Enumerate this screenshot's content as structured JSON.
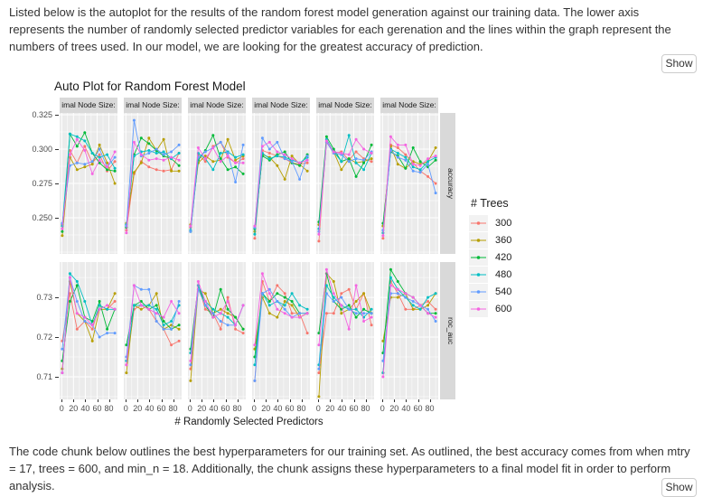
{
  "page": {
    "intro_paragraph": "Listed below is the autoplot for the results of the random forest model generation against our training data. The lower axis represents the number of randomly selected predictor variables for each gerenation and the lines within the graph represent the numbers of trees used. In our model, we are looking for the greatest accuracy of prediction.",
    "outro_paragraph": "The code chunk below outlines the best hyperparameters for our training set. As outlined, the best accuracy comes from when mtry = 17, trees = 600, and min_n = 18. Additionally, the chunk assigns these hyperparameters to a final model fit in order to perform analysis.",
    "show_button_label": "Show"
  },
  "theme": {
    "panel_bg": "#EBEBEB",
    "grid": "#FFFFFF",
    "strip_bg": "#D9D9D9",
    "axis_text": "#4D4D4D",
    "tick_mark": "#333333"
  },
  "chart_data": {
    "type": "line",
    "title": "Auto Plot for Random Forest Model",
    "xlabel": "# Randomly Selected Predictors",
    "legend": {
      "title": "# Trees",
      "position": "right"
    },
    "series_order": [
      "300",
      "360",
      "420",
      "480",
      "540",
      "600"
    ],
    "series_colors": {
      "300": "#F8766D",
      "360": "#B79F00",
      "420": "#00BA38",
      "480": "#00BFC4",
      "540": "#619CFF",
      "600": "#F564E2"
    },
    "x": [
      1,
      14,
      26,
      39,
      52,
      64,
      77,
      90
    ],
    "x_ticks": [
      0,
      20,
      40,
      60,
      80
    ],
    "x_minor_ticks": [
      10,
      30,
      50,
      70,
      90
    ],
    "xlim": [
      -3.5,
      94.5
    ],
    "metrics": [
      {
        "name": "accuracy",
        "ticks": [
          0.325,
          0.3,
          0.275,
          0.25
        ],
        "tick_labels": [
          "0.325",
          "0.300",
          "0.275",
          "0.250"
        ],
        "minor": [
          0.225,
          0.2375,
          0.2625,
          0.2875,
          0.3125
        ],
        "ylim": [
          0.2237,
          0.3263
        ]
      },
      {
        "name": "roc_auc",
        "ticks": [
          0.73,
          0.72,
          0.71
        ],
        "tick_labels": [
          "0.73",
          "0.72",
          "0.71"
        ],
        "minor": [
          0.705,
          0.715,
          0.725,
          0.735
        ],
        "ylim": [
          0.7043,
          0.7389
        ]
      }
    ],
    "facets": [
      {
        "strip": "imal Node Size:",
        "accuracy": {
          "300": [
            0.245,
            0.299,
            0.29,
            0.302,
            0.29,
            0.296,
            0.284,
            0.291
          ],
          "360": [
            0.237,
            0.294,
            0.285,
            0.287,
            0.289,
            0.303,
            0.29,
            0.275
          ],
          "420": [
            0.24,
            0.311,
            0.302,
            0.312,
            0.297,
            0.29,
            0.285,
            0.284
          ],
          "480": [
            0.244,
            0.311,
            0.309,
            0.306,
            0.297,
            0.294,
            0.296,
            0.286
          ],
          "540": [
            0.246,
            0.288,
            0.29,
            0.289,
            0.291,
            0.3,
            0.287,
            0.294
          ],
          "600": [
            0.242,
            0.296,
            0.307,
            0.299,
            0.282,
            0.292,
            0.287,
            0.298
          ]
        },
        "roc_auc": {
          "300": [
            0.719,
            0.731,
            0.722,
            0.724,
            0.722,
            0.728,
            0.727,
            0.729
          ],
          "360": [
            0.712,
            0.734,
            0.726,
            0.724,
            0.719,
            0.727,
            0.727,
            0.731
          ],
          "420": [
            0.714,
            0.729,
            0.733,
            0.725,
            0.724,
            0.729,
            0.722,
            0.727
          ],
          "480": [
            0.711,
            0.736,
            0.734,
            0.729,
            0.723,
            0.728,
            0.727,
            0.727
          ],
          "540": [
            0.717,
            0.735,
            0.729,
            0.724,
            0.723,
            0.72,
            0.721,
            0.721
          ],
          "600": [
            0.711,
            0.735,
            0.726,
            0.725,
            0.723,
            0.727,
            0.728,
            0.727
          ]
        }
      },
      {
        "strip": "imal Node Size:",
        "accuracy": {
          "300": [
            0.241,
            0.282,
            0.291,
            0.287,
            0.285,
            0.284,
            0.285,
            0.297
          ],
          "360": [
            0.246,
            0.283,
            0.29,
            0.308,
            0.299,
            0.307,
            0.284,
            0.284
          ],
          "420": [
            0.243,
            0.296,
            0.308,
            0.304,
            0.299,
            0.295,
            0.293,
            0.288
          ],
          "480": [
            0.245,
            0.295,
            0.298,
            0.299,
            0.297,
            0.298,
            0.293,
            0.297
          ],
          "540": [
            0.244,
            0.321,
            0.295,
            0.297,
            0.3,
            0.296,
            0.298,
            0.303
          ],
          "600": [
            0.239,
            0.305,
            0.296,
            0.292,
            0.293,
            0.292,
            0.294,
            0.292
          ]
        },
        "roc_auc": {
          "300": [
            0.713,
            0.727,
            0.728,
            0.727,
            0.724,
            0.722,
            0.718,
            0.719
          ],
          "360": [
            0.711,
            0.728,
            0.727,
            0.728,
            0.731,
            0.722,
            0.723,
            0.722
          ],
          "420": [
            0.718,
            0.728,
            0.729,
            0.727,
            0.728,
            0.724,
            0.722,
            0.723
          ],
          "480": [
            0.714,
            0.728,
            0.728,
            0.728,
            0.727,
            0.723,
            0.724,
            0.728
          ],
          "540": [
            0.715,
            0.733,
            0.732,
            0.732,
            0.724,
            0.722,
            0.722,
            0.729
          ],
          "600": [
            0.713,
            0.733,
            0.728,
            0.727,
            0.726,
            0.725,
            0.729,
            0.726
          ]
        }
      },
      {
        "strip": "imal Node Size:",
        "accuracy": {
          "300": [
            0.243,
            0.296,
            0.291,
            0.302,
            0.305,
            0.294,
            0.29,
            0.293
          ],
          "360": [
            0.245,
            0.29,
            0.295,
            0.291,
            0.292,
            0.307,
            0.292,
            0.295
          ],
          "420": [
            0.24,
            0.292,
            0.299,
            0.31,
            0.293,
            0.285,
            0.287,
            0.282
          ],
          "480": [
            0.241,
            0.297,
            0.293,
            0.285,
            0.297,
            0.298,
            0.294,
            0.296
          ],
          "540": [
            0.24,
            0.294,
            0.298,
            0.301,
            0.305,
            0.297,
            0.276,
            0.303
          ],
          "600": [
            0.244,
            0.301,
            0.293,
            0.301,
            0.291,
            0.295,
            0.29,
            0.29
          ]
        },
        "roc_auc": {
          "300": [
            0.712,
            0.733,
            0.727,
            0.726,
            0.722,
            0.73,
            0.722,
            0.721
          ],
          "360": [
            0.709,
            0.732,
            0.731,
            0.726,
            0.727,
            0.726,
            0.725,
            0.722
          ],
          "420": [
            0.717,
            0.733,
            0.728,
            0.725,
            0.732,
            0.727,
            0.725,
            0.722
          ],
          "480": [
            0.716,
            0.733,
            0.729,
            0.727,
            0.726,
            0.725,
            0.723,
            0.728
          ],
          "540": [
            0.713,
            0.732,
            0.728,
            0.726,
            0.724,
            0.723,
            0.723,
            0.728
          ],
          "600": [
            0.714,
            0.734,
            0.729,
            0.725,
            0.726,
            0.729,
            0.723,
            0.728
          ]
        }
      },
      {
        "strip": "imal Node Size:",
        "accuracy": {
          "300": [
            0.235,
            0.299,
            0.297,
            0.295,
            0.293,
            0.29,
            0.289,
            0.29
          ],
          "360": [
            0.24,
            0.296,
            0.294,
            0.288,
            0.278,
            0.295,
            0.289,
            0.284
          ],
          "420": [
            0.242,
            0.295,
            0.292,
            0.296,
            0.298,
            0.29,
            0.288,
            0.296
          ],
          "480": [
            0.238,
            0.297,
            0.293,
            0.295,
            0.294,
            0.292,
            0.29,
            0.294
          ],
          "540": [
            0.243,
            0.308,
            0.3,
            0.305,
            0.293,
            0.291,
            0.278,
            0.295
          ],
          "600": [
            0.244,
            0.302,
            0.305,
            0.298,
            0.296,
            0.293,
            0.29,
            0.292
          ]
        },
        "roc_auc": {
          "300": [
            0.709,
            0.734,
            0.729,
            0.733,
            0.731,
            0.726,
            0.726,
            0.721
          ],
          "360": [
            0.717,
            0.73,
            0.726,
            0.725,
            0.729,
            0.728,
            0.725,
            0.726
          ],
          "420": [
            0.715,
            0.731,
            0.729,
            0.731,
            0.73,
            0.729,
            0.726,
            0.726
          ],
          "480": [
            0.713,
            0.731,
            0.728,
            0.729,
            0.728,
            0.731,
            0.728,
            0.727
          ],
          "540": [
            0.709,
            0.731,
            0.732,
            0.729,
            0.727,
            0.725,
            0.726,
            0.726
          ],
          "600": [
            0.718,
            0.736,
            0.731,
            0.727,
            0.726,
            0.725,
            0.725,
            0.726
          ]
        }
      },
      {
        "strip": "imal Node Size:",
        "accuracy": {
          "300": [
            0.233,
            0.307,
            0.297,
            0.298,
            0.292,
            0.298,
            0.293,
            0.291
          ],
          "360": [
            0.245,
            0.305,
            0.298,
            0.285,
            0.293,
            0.29,
            0.291,
            0.293
          ],
          "420": [
            0.247,
            0.309,
            0.3,
            0.291,
            0.293,
            0.28,
            0.29,
            0.303
          ],
          "480": [
            0.242,
            0.307,
            0.298,
            0.291,
            0.31,
            0.29,
            0.285,
            0.297
          ],
          "540": [
            0.24,
            0.305,
            0.297,
            0.296,
            0.291,
            0.293,
            0.292,
            0.298
          ],
          "600": [
            0.238,
            0.306,
            0.298,
            0.297,
            0.296,
            0.307,
            0.3,
            0.297
          ]
        },
        "roc_auc": {
          "300": [
            0.711,
            0.726,
            0.726,
            0.731,
            0.732,
            0.727,
            0.731,
            0.723
          ],
          "360": [
            0.705,
            0.736,
            0.734,
            0.726,
            0.727,
            0.729,
            0.731,
            0.726
          ],
          "420": [
            0.721,
            0.736,
            0.729,
            0.727,
            0.728,
            0.725,
            0.727,
            0.726
          ],
          "480": [
            0.713,
            0.733,
            0.73,
            0.728,
            0.727,
            0.727,
            0.725,
            0.727
          ],
          "540": [
            0.712,
            0.731,
            0.729,
            0.73,
            0.727,
            0.726,
            0.726,
            0.726
          ],
          "600": [
            0.718,
            0.737,
            0.731,
            0.728,
            0.722,
            0.733,
            0.724,
            0.725
          ]
        }
      },
      {
        "strip": "imal Node Size:",
        "accuracy": {
          "300": [
            0.235,
            0.303,
            0.301,
            0.296,
            0.29,
            0.284,
            0.28,
            0.275
          ],
          "360": [
            0.244,
            0.302,
            0.289,
            0.286,
            0.291,
            0.289,
            0.291,
            0.301
          ],
          "420": [
            0.246,
            0.298,
            0.295,
            0.286,
            0.301,
            0.291,
            0.287,
            0.292
          ],
          "480": [
            0.239,
            0.3,
            0.297,
            0.294,
            0.287,
            0.285,
            0.291,
            0.294
          ],
          "540": [
            0.241,
            0.299,
            0.294,
            0.292,
            0.284,
            0.283,
            0.289,
            0.268
          ],
          "600": [
            0.237,
            0.309,
            0.303,
            0.303,
            0.289,
            0.288,
            0.293,
            0.295
          ]
        },
        "roc_auc": {
          "300": [
            0.711,
            0.734,
            0.731,
            0.727,
            0.727,
            0.728,
            0.729,
            0.727
          ],
          "360": [
            0.719,
            0.73,
            0.73,
            0.731,
            0.727,
            0.727,
            0.728,
            0.731
          ],
          "420": [
            0.716,
            0.737,
            0.734,
            0.731,
            0.73,
            0.728,
            0.726,
            0.726
          ],
          "480": [
            0.711,
            0.735,
            0.732,
            0.73,
            0.728,
            0.727,
            0.73,
            0.731
          ],
          "540": [
            0.714,
            0.731,
            0.731,
            0.73,
            0.729,
            0.728,
            0.727,
            0.724
          ],
          "600": [
            0.71,
            0.733,
            0.732,
            0.731,
            0.73,
            0.728,
            0.726,
            0.725
          ]
        }
      }
    ]
  }
}
